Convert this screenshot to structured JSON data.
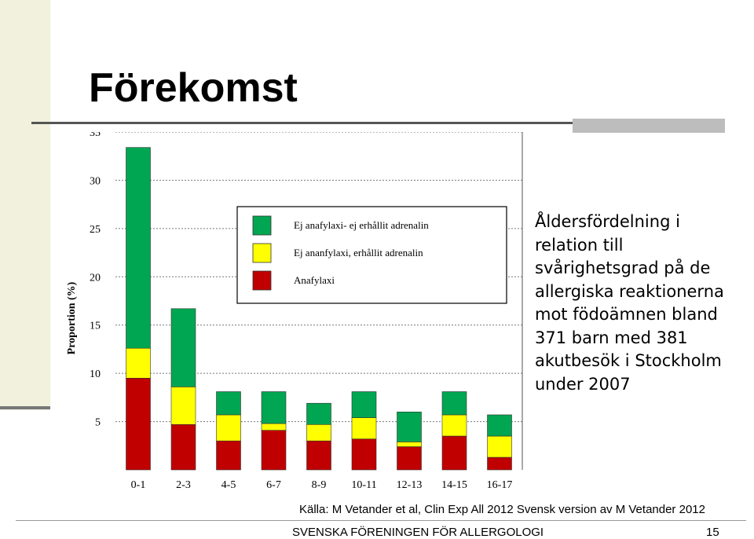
{
  "slide": {
    "title": "Förekomst",
    "description": "Åldersfördelning i\nrelation till\nsvårighetsgrad på de\nallergiska reaktionerna\nmot födoämnen bland\n371 barn med 381\nakutbesök i Stockholm\nunder 2007",
    "source": "Källa: M Vetander et al, Clin Exp All 2012 Svensk version av M Vetander 2012",
    "footer_org": "SVENSKA FÖRENINGEN FÖR ALLERGOLOGI",
    "page_number": "15"
  },
  "colors": {
    "green": "#00a651",
    "yellow": "#ffff00",
    "red": "#c00000"
  },
  "chart_data": {
    "type": "bar",
    "stacked": true,
    "ylabel": "Proportion (%)",
    "xlabel": "",
    "ylim": [
      0,
      35
    ],
    "yticks": [
      5,
      10,
      15,
      20,
      25,
      30,
      35
    ],
    "grid": true,
    "legend_position": "top-center",
    "categories": [
      "0-1",
      "2-3",
      "4-5",
      "6-7",
      "8-9",
      "10-11",
      "12-13",
      "14-15",
      "16-17"
    ],
    "series": [
      {
        "name": "Anafylaxi",
        "color": "#c00000",
        "values": [
          9.5,
          4.7,
          3.0,
          4.1,
          3.0,
          3.2,
          2.4,
          3.5,
          1.3
        ]
      },
      {
        "name": "Ej ananfylaxi, erhållit adrenalin",
        "color": "#ffff00",
        "values": [
          3.1,
          3.9,
          2.7,
          0.7,
          1.7,
          2.2,
          0.5,
          2.2,
          2.2
        ]
      },
      {
        "name": "Ej anafylaxi- ej erhållit adrenalin",
        "color": "#00a651",
        "values": [
          20.8,
          8.1,
          2.4,
          3.3,
          2.2,
          2.7,
          3.1,
          2.4,
          2.2
        ]
      }
    ],
    "legend_order": [
      "Ej anafylaxi- ej erhållit adrenalin",
      "Ej ananfylaxi, erhållit adrenalin",
      "Anafylaxi"
    ]
  }
}
